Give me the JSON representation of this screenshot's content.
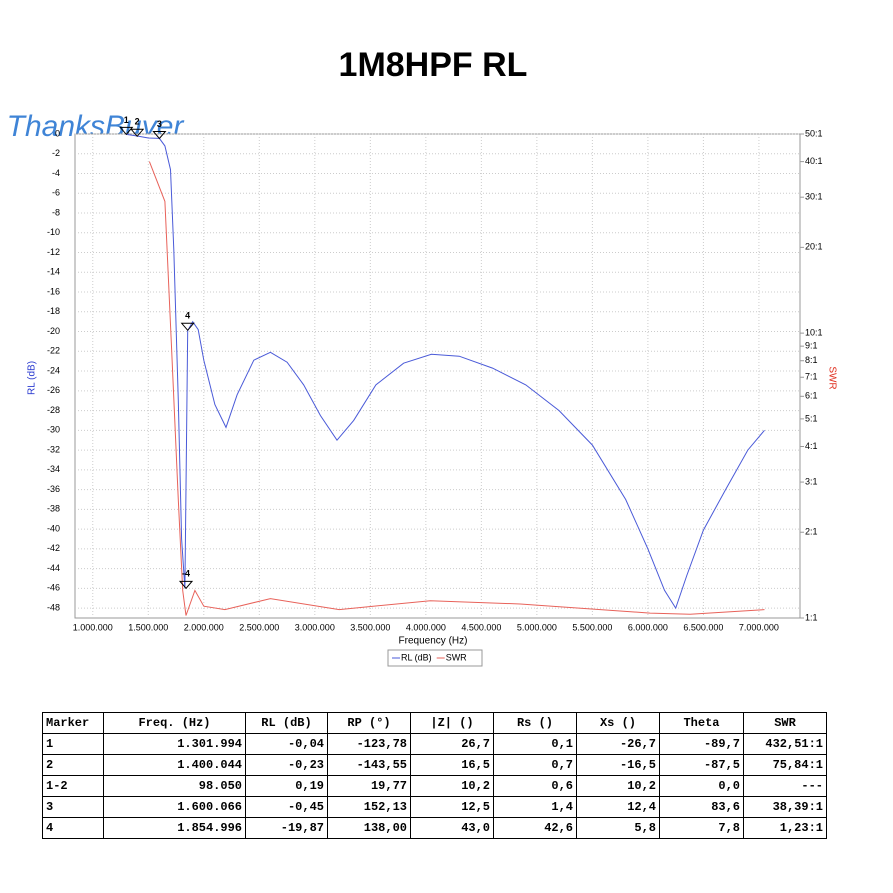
{
  "chart_data": {
    "type": "line",
    "title": "1M8HPF RL",
    "watermark": "ThanksBuyer",
    "xlabel": "Frequency (Hz)",
    "ylabel": "RL (dB)",
    "y2label": "SWR",
    "xlim": [
      840000,
      7370000
    ],
    "xticks": [
      {
        "value": 1000000,
        "label": "1.000.000"
      },
      {
        "value": 1500000,
        "label": "1.500.000"
      },
      {
        "value": 2000000,
        "label": "2.000.000"
      },
      {
        "value": 2500000,
        "label": "2.500.000"
      },
      {
        "value": 3000000,
        "label": "3.000.000"
      },
      {
        "value": 3500000,
        "label": "3.500.000"
      },
      {
        "value": 4000000,
        "label": "4.000.000"
      },
      {
        "value": 4500000,
        "label": "4.500.000"
      },
      {
        "value": 5000000,
        "label": "5.000.000"
      },
      {
        "value": 5500000,
        "label": "5.500.000"
      },
      {
        "value": 6000000,
        "label": "6.000.000"
      },
      {
        "value": 6500000,
        "label": "6.500.000"
      },
      {
        "value": 7000000,
        "label": "7.000.000"
      }
    ],
    "ylim": [
      -49,
      0
    ],
    "yticks": [
      0,
      -2,
      -4,
      -6,
      -8,
      -10,
      -12,
      -14,
      -16,
      -18,
      -20,
      -22,
      -24,
      -26,
      -28,
      -30,
      -32,
      -34,
      -36,
      -38,
      -40,
      -42,
      -44,
      -46,
      -48
    ],
    "y2lim": [
      1,
      50
    ],
    "y2log": true,
    "y2ticks": [
      {
        "value": 50,
        "label": "50:1"
      },
      {
        "value": 40,
        "label": "40:1"
      },
      {
        "value": 30,
        "label": "30:1"
      },
      {
        "value": 20,
        "label": "20:1"
      },
      {
        "value": 10,
        "label": "10:1"
      },
      {
        "value": 9,
        "label": "9:1"
      },
      {
        "value": 8,
        "label": "8:1"
      },
      {
        "value": 7,
        "label": "7:1"
      },
      {
        "value": 6,
        "label": "6:1"
      },
      {
        "value": 5,
        "label": "5:1"
      },
      {
        "value": 4,
        "label": "4:1"
      },
      {
        "value": 3,
        "label": "3:1"
      },
      {
        "value": 2,
        "label": "2:1"
      },
      {
        "value": 1,
        "label": "1:1"
      }
    ],
    "grid": true,
    "series": [
      {
        "name": "RL (dB)",
        "color": "#4a5ad8",
        "x": [
          1300000,
          1400000,
          1500000,
          1600000,
          1650000,
          1700000,
          1730000,
          1770000,
          1800000,
          1830000,
          1855000,
          1900000,
          1950000,
          2000000,
          2100000,
          2200000,
          2300000,
          2450000,
          2600000,
          2750000,
          2900000,
          3050000,
          3200000,
          3350000,
          3550000,
          3800000,
          4050000,
          4300000,
          4600000,
          4900000,
          5200000,
          5500000,
          5800000,
          6000000,
          6150000,
          6250000,
          6350000,
          6500000,
          6700000,
          6900000,
          7050000
        ],
        "values": [
          -0.04,
          -0.2,
          -0.4,
          -0.45,
          -1.2,
          -3.6,
          -11.7,
          -27,
          -41,
          -46,
          -19.9,
          -19,
          -19.8,
          -22.9,
          -27.4,
          -29.7,
          -26.4,
          -22.9,
          -22.1,
          -23.1,
          -25.4,
          -28.5,
          -31,
          -29,
          -25.4,
          -23.2,
          -22.3,
          -22.5,
          -23.7,
          -25.4,
          -28,
          -31.5,
          -37,
          -42,
          -46.2,
          -48,
          -44.7,
          -40.1,
          -36,
          -32,
          -30
        ]
      },
      {
        "name": "SWR",
        "color": "#e8625a",
        "axis": "y2",
        "x": [
          1510000,
          1650000,
          1710000,
          1770000,
          1810000,
          1840000,
          1920000,
          2000000,
          2190000,
          2600000,
          3220000,
          4040000,
          4850000,
          6020000,
          6380000,
          7050000
        ],
        "values": [
          40,
          29,
          8.8,
          2.6,
          1.25,
          1.02,
          1.25,
          1.1,
          1.07,
          1.17,
          1.07,
          1.15,
          1.12,
          1.04,
          1.03,
          1.07
        ]
      }
    ],
    "markers": [
      {
        "label": "1",
        "x": 1301994,
        "y": -0.04
      },
      {
        "label": "2",
        "x": 1400044,
        "y": -0.23
      },
      {
        "label": "3",
        "x": 1600066,
        "y": -0.45
      },
      {
        "label": "4",
        "x": 1854996,
        "y": -19.87
      },
      {
        "label": "-4",
        "x": 1840000,
        "y": -46
      }
    ]
  },
  "table": {
    "header": [
      "Marker",
      "Freq. (Hz)",
      "RL (dB)",
      "RP (°)",
      "|Z| ()",
      "Rs ()",
      "Xs ()",
      "Theta",
      "SWR"
    ],
    "rows": [
      [
        "1",
        "1.301.994",
        "-0,04",
        "-123,78",
        "26,7",
        "0,1",
        "-26,7",
        "-89,7",
        "432,51:1"
      ],
      [
        "2",
        "1.400.044",
        "-0,23",
        "-143,55",
        "16,5",
        "0,7",
        "-16,5",
        "-87,5",
        "75,84:1"
      ],
      [
        "1-2",
        "98.050",
        "0,19",
        "19,77",
        "10,2",
        "0,6",
        "10,2",
        "0,0",
        "---"
      ],
      [
        "3",
        "1.600.066",
        "-0,45",
        "152,13",
        "12,5",
        "1,4",
        "12,4",
        "83,6",
        "38,39:1"
      ],
      [
        "4",
        "1.854.996",
        "-19,87",
        "138,00",
        "43,0",
        "42,6",
        "5,8",
        "7,8",
        "1,23:1"
      ]
    ]
  }
}
